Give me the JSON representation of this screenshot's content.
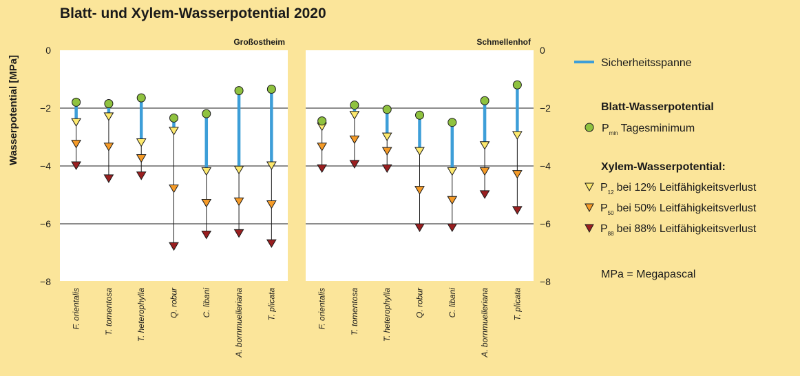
{
  "chart_data": {
    "type": "scatter",
    "title": "Blatt- und Xylem-Wasserpotential 2020",
    "ylabel": "Wasserpotential [MPa]",
    "ylim": [
      -8,
      0
    ],
    "yticks": [
      0,
      -2,
      -4,
      -6,
      -8
    ],
    "ytick_labels": [
      "0",
      "−2",
      "−4",
      "−6",
      "−8"
    ],
    "grid": "horizontal lines at −2, −4, −6",
    "legend_position": "right",
    "categories": [
      "F. orientalis",
      "T. tomentosa",
      "T. heterophylla",
      "Q. robur",
      "C. libani",
      "A. bornmuelleriana",
      "T. plicata"
    ],
    "panels": [
      {
        "name": "Großostheim",
        "tick_side": "left",
        "series": [
          {
            "name": "Pmin",
            "values": [
              -1.8,
              -1.85,
              -1.65,
              -2.35,
              -2.2,
              -1.4,
              -1.35
            ]
          },
          {
            "name": "P12",
            "values": [
              -2.5,
              -2.3,
              -3.2,
              -2.8,
              -4.2,
              -4.15,
              -4.0
            ]
          },
          {
            "name": "P50",
            "values": [
              -3.25,
              -3.35,
              -3.75,
              -4.8,
              -5.3,
              -5.25,
              -5.35
            ]
          },
          {
            "name": "P88",
            "values": [
              -4.0,
              -4.45,
              -4.35,
              -6.8,
              -6.4,
              -6.35,
              -6.7
            ]
          }
        ]
      },
      {
        "name": "Schmellenhof",
        "tick_side": "right",
        "series": [
          {
            "name": "Pmin",
            "values": [
              -2.45,
              -1.9,
              -2.05,
              -2.25,
              -2.5,
              -1.75,
              -1.2
            ]
          },
          {
            "name": "P12",
            "values": [
              -2.65,
              -2.25,
              -3.0,
              -3.5,
              -4.2,
              -3.3,
              -2.95
            ]
          },
          {
            "name": "P50",
            "values": [
              -3.35,
              -3.1,
              -3.5,
              -4.85,
              -5.2,
              -4.2,
              -4.3
            ]
          },
          {
            "name": "P88",
            "values": [
              -4.1,
              -3.95,
              -4.1,
              -6.15,
              -6.15,
              -5.0,
              -5.55
            ]
          }
        ]
      }
    ],
    "colors": {
      "background": "#fbe59a",
      "plot": "#ffffff",
      "safety": "#3d9ed8",
      "pmin": "#8fc23f",
      "p12": "#fde96e",
      "p50": "#f59b28",
      "p88": "#9a1f20",
      "outline": "#1a1a1a"
    },
    "legend": {
      "safety_label": "Sicherheitsspanne",
      "blatt_header": "Blatt-Wasserpotential",
      "pmin_symbol": "P",
      "pmin_sub": "min",
      "pmin_text": "Tagesminimum",
      "xylem_header": "Xylem-Wasserpotential:",
      "p12_symbol": "P",
      "p12_sub": "12",
      "p12_text": "bei 12% Leitfähigkeitsverlust",
      "p50_symbol": "P",
      "p50_sub": "50",
      "p50_text": "bei 50% Leitfähigkeitsverlust",
      "p88_symbol": "P",
      "p88_sub": "88",
      "p88_text": "bei 88% Leitfähigkeitsverlust",
      "unit_note": "MPa = Megapascal"
    }
  }
}
